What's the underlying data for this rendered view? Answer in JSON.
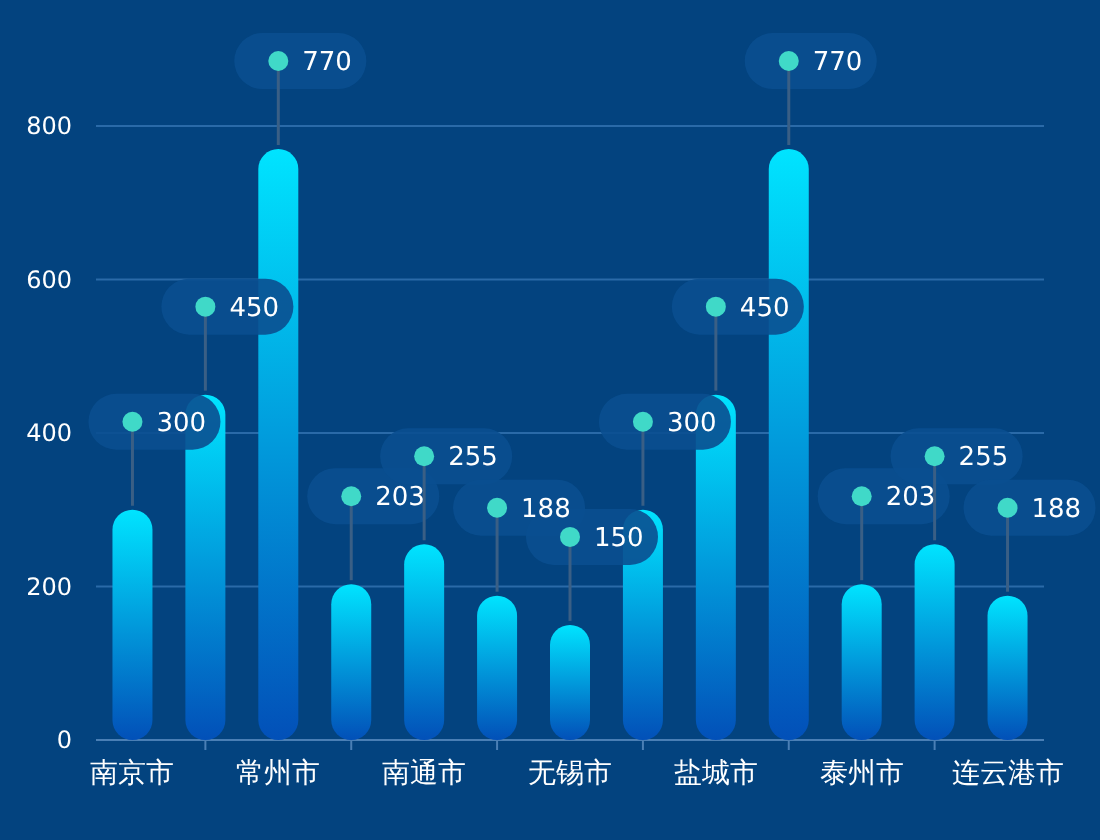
{
  "chart_data": {
    "type": "bar",
    "categories": [
      "南京市",
      null,
      "常州市",
      null,
      "南通市",
      null,
      "无锡市",
      null,
      "盐城市",
      null,
      "泰州市",
      null,
      "连云港市"
    ],
    "values": [
      300,
      450,
      770,
      203,
      255,
      188,
      150,
      300,
      450,
      770,
      203,
      255,
      188
    ],
    "color": "#00e4ff",
    "ylim": [
      0,
      800
    ],
    "yticks": [
      0,
      200,
      400,
      600,
      800
    ],
    "grid": "y",
    "data_labels": true
  }
}
